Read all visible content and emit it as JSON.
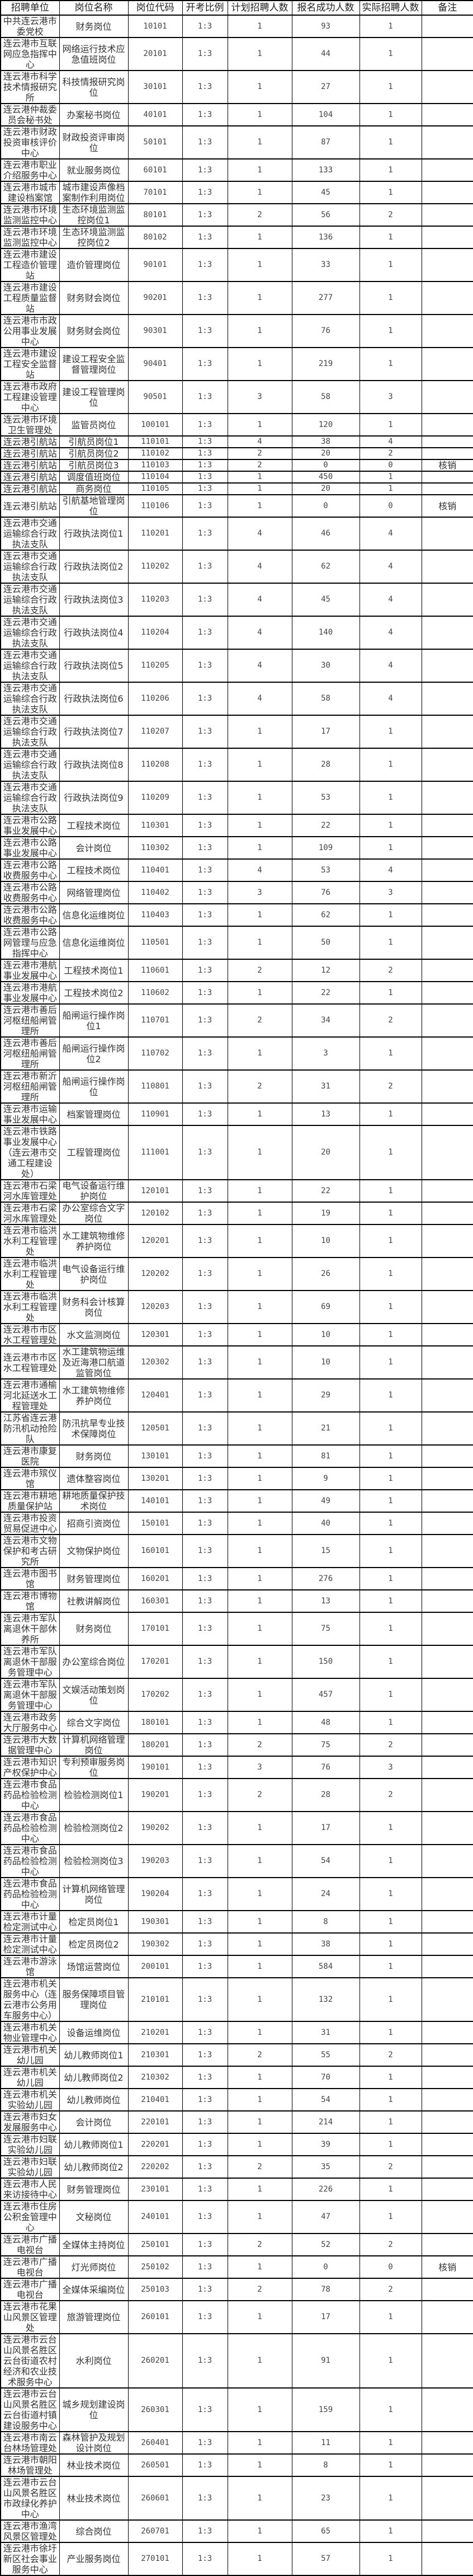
{
  "headers": [
    "招聘单位",
    "岗位名称",
    "岗位代码",
    "开考比例",
    "计划招聘人数",
    "报名成功人数",
    "实际招聘人数",
    "备注"
  ],
  "rows": [
    [
      "中共连云港市委党校",
      "财务岗位",
      "10101",
      "1:3",
      "1",
      "93",
      "1",
      ""
    ],
    [
      "连云港市互联网应急指挥中心",
      "网络运行技术应急值班岗位",
      "20101",
      "1:3",
      "1",
      "44",
      "1",
      ""
    ],
    [
      "连云港市科学技术情报研究所",
      "科技情报研究岗位",
      "30101",
      "1:3",
      "1",
      "27",
      "1",
      ""
    ],
    [
      "连云港仲裁委员会秘书处",
      "办案秘书岗位",
      "40101",
      "1:3",
      "1",
      "104",
      "1",
      ""
    ],
    [
      "连云港市财政投资审核评价中心",
      "财政投资评审岗位",
      "50101",
      "1:3",
      "1",
      "87",
      "1",
      ""
    ],
    [
      "连云港市职业介绍服务中心",
      "就业服务岗位",
      "60101",
      "1:3",
      "1",
      "133",
      "1",
      ""
    ],
    [
      "连云港市城市建设档案馆",
      "城市建设声像档案制作利用岗位",
      "70101",
      "1:3",
      "1",
      "45",
      "1",
      ""
    ],
    [
      "连云港市环境监测监控中心",
      "生态环境监测监控岗位1",
      "80101",
      "1:3",
      "2",
      "56",
      "2",
      ""
    ],
    [
      "连云港市环境监测监控中心",
      "生态环境监测监控岗位2",
      "80102",
      "1:3",
      "1",
      "136",
      "1",
      ""
    ],
    [
      "连云港市建设工程造价管理站",
      "造价管理岗位",
      "90101",
      "1:3",
      "1",
      "33",
      "1",
      ""
    ],
    [
      "连云港市建设工程质量监督站",
      "财务财会岗位",
      "90201",
      "1:3",
      "1",
      "277",
      "1",
      ""
    ],
    [
      "连云港市市政公用事业发展中心",
      "财务财会岗位",
      "90301",
      "1:3",
      "1",
      "76",
      "1",
      ""
    ],
    [
      "连云港市建设工程安全监督站",
      "建设工程安全监督管理岗位",
      "90401",
      "1:3",
      "1",
      "219",
      "1",
      ""
    ],
    [
      "连云港市政府工程建设管理中心",
      "建设工程管理岗位",
      "90501",
      "1:3",
      "3",
      "58",
      "3",
      ""
    ],
    [
      "连云港市环境卫生管理处",
      "监管员岗位",
      "100101",
      "1:3",
      "1",
      "120",
      "1",
      ""
    ],
    [
      "连云港引航站",
      "引航员岗位1",
      "110101",
      "1:3",
      "4",
      "38",
      "4",
      ""
    ],
    [
      "连云港引航站",
      "引航员岗位2",
      "110102",
      "1:3",
      "2",
      "20",
      "2",
      ""
    ],
    [
      "连云港引航站",
      "引航员岗位3",
      "110103",
      "1:3",
      "2",
      "0",
      "0",
      "核销"
    ],
    [
      "连云港引航站",
      "调度值班岗位",
      "110104",
      "1:3",
      "1",
      "450",
      "1",
      ""
    ],
    [
      "连云港引航站",
      "商务岗位",
      "110105",
      "1:3",
      "1",
      "20",
      "1",
      ""
    ],
    [
      "连云港引航站",
      "引航基地管理岗位",
      "110106",
      "1:3",
      "1",
      "0",
      "0",
      "核销"
    ],
    [
      "连云港市交通运输综合行政执法支队",
      "行政执法岗位1",
      "110201",
      "1:3",
      "4",
      "46",
      "4",
      ""
    ],
    [
      "连云港市交通运输综合行政执法支队",
      "行政执法岗位2",
      "110202",
      "1:3",
      "4",
      "62",
      "4",
      ""
    ],
    [
      "连云港市交通运输综合行政执法支队",
      "行政执法岗位3",
      "110203",
      "1:3",
      "4",
      "45",
      "4",
      ""
    ],
    [
      "连云港市交通运输综合行政执法支队",
      "行政执法岗位4",
      "110204",
      "1:3",
      "4",
      "140",
      "4",
      ""
    ],
    [
      "连云港市交通运输综合行政执法支队",
      "行政执法岗位5",
      "110205",
      "1:3",
      "4",
      "30",
      "4",
      ""
    ],
    [
      "连云港市交通运输综合行政执法支队",
      "行政执法岗位6",
      "110206",
      "1:3",
      "4",
      "58",
      "4",
      ""
    ],
    [
      "连云港市交通运输综合行政执法支队",
      "行政执法岗位7",
      "110207",
      "1:3",
      "1",
      "17",
      "1",
      ""
    ],
    [
      "连云港市交通运输综合行政执法支队",
      "行政执法岗位8",
      "110208",
      "1:3",
      "1",
      "28",
      "1",
      ""
    ],
    [
      "连云港市交通运输综合行政执法支队",
      "行政执法岗位9",
      "110209",
      "1:3",
      "1",
      "53",
      "1",
      ""
    ],
    [
      "连云港市公路事业发展中心",
      "工程技术岗位",
      "110301",
      "1:3",
      "1",
      "22",
      "1",
      ""
    ],
    [
      "连云港市公路事业发展中心",
      "会计岗位",
      "110302",
      "1:3",
      "1",
      "109",
      "1",
      ""
    ],
    [
      "连云港市公路收费服务中心",
      "工程技术岗位",
      "110401",
      "1:3",
      "4",
      "53",
      "4",
      ""
    ],
    [
      "连云港市公路收费服务中心",
      "网络管理岗位",
      "110402",
      "1:3",
      "3",
      "76",
      "3",
      ""
    ],
    [
      "连云港市公路收费服务中心",
      "信息化运维岗位",
      "110403",
      "1:3",
      "1",
      "62",
      "1",
      ""
    ],
    [
      "连云港市公路网管理与应急指挥中心",
      "信息化运维岗位",
      "110501",
      "1:3",
      "1",
      "50",
      "1",
      ""
    ],
    [
      "连云港市港航事业发展中心",
      "工程技术岗位1",
      "110601",
      "1:3",
      "2",
      "12",
      "2",
      ""
    ],
    [
      "连云港市港航事业发展中心",
      "工程技术岗位2",
      "110602",
      "1:3",
      "1",
      "22",
      "1",
      ""
    ],
    [
      "连云港市善后河枢纽船闸管理所",
      "船闸运行操作岗位1",
      "110701",
      "1:3",
      "2",
      "34",
      "2",
      ""
    ],
    [
      "连云港市善后河枢纽船闸管理所",
      "船闸运行操作岗位2",
      "110702",
      "1:3",
      "1",
      "3",
      "1",
      ""
    ],
    [
      "连云港市新沂河枢纽船闸管理所",
      "船闸运行操作岗位",
      "110801",
      "1:3",
      "2",
      "31",
      "2",
      ""
    ],
    [
      "连云港市运输事业发展中心",
      "档案管理岗位",
      "110901",
      "1:3",
      "1",
      "13",
      "1",
      ""
    ],
    [
      "连云港市铁路事业发展中心（连云港市交通工程建设处）",
      "工程管理岗位",
      "111001",
      "1:3",
      "1",
      "20",
      "1",
      ""
    ],
    [
      "连云港市石梁河水库管理处",
      "电气设备运行维护岗位",
      "120101",
      "1:3",
      "1",
      "22",
      "1",
      ""
    ],
    [
      "连云港市石梁河水库管理处",
      "办公室综合文字岗位",
      "120102",
      "1:3",
      "1",
      "19",
      "1",
      ""
    ],
    [
      "连云港市临洪水利工程管理处",
      "水工建筑物维修养护岗位",
      "120201",
      "1:3",
      "1",
      "10",
      "1",
      ""
    ],
    [
      "连云港市临洪水利工程管理处",
      "电气设备运行维护岗位",
      "120202",
      "1:3",
      "1",
      "26",
      "1",
      ""
    ],
    [
      "连云港市临洪水利工程管理处",
      "财务科会计核算岗位",
      "120203",
      "1:3",
      "1",
      "69",
      "1",
      ""
    ],
    [
      "连云港市市区水工程管理处",
      "水文监测岗位",
      "120301",
      "1:3",
      "1",
      "10",
      "1",
      ""
    ],
    [
      "连云港市市区水工程管理处",
      "水工建筑物运维及近海港口航道监管岗位",
      "120302",
      "1:3",
      "1",
      "10",
      "1",
      ""
    ],
    [
      "连云港市通榆河北延送水工程管理处",
      "水工建筑物维修养护岗位",
      "120401",
      "1:3",
      "1",
      "29",
      "1",
      ""
    ],
    [
      "江苏省连云港防汛机动抢险队",
      "防汛抗旱专业技术保障岗位",
      "120501",
      "1:3",
      "1",
      "21",
      "1",
      ""
    ],
    [
      "连云港市康复医院",
      "财务岗位",
      "130101",
      "1:3",
      "1",
      "81",
      "1",
      ""
    ],
    [
      "连云港市殡仪馆",
      "遗体整容岗位",
      "130201",
      "1:3",
      "1",
      "9",
      "1",
      ""
    ],
    [
      "连云港市耕地质量保护站",
      "耕地质量保护技术岗位",
      "140101",
      "1:3",
      "1",
      "49",
      "1",
      ""
    ],
    [
      "连云港市投资贸易促进中心",
      "招商引资岗位",
      "150101",
      "1:3",
      "1",
      "40",
      "1",
      ""
    ],
    [
      "连云港市文物保护和考古研究所",
      "文物保护岗位",
      "160101",
      "1:3",
      "1",
      "15",
      "1",
      ""
    ],
    [
      "连云港市图书馆",
      "财务管理岗位",
      "160201",
      "1:3",
      "1",
      "276",
      "1",
      ""
    ],
    [
      "连云港市博物馆",
      "社教讲解岗位",
      "160301",
      "1:3",
      "1",
      "13",
      "1",
      ""
    ],
    [
      "连云港市军队离退休干部休养所",
      "财务岗位",
      "170101",
      "1:3",
      "1",
      "75",
      "1",
      ""
    ],
    [
      "连云港市军队离退休干部服务管理中心",
      "办公室综合岗位",
      "170201",
      "1:3",
      "1",
      "150",
      "1",
      ""
    ],
    [
      "连云港市军队离退休干部服务管理中心",
      "文娱活动策划岗位",
      "170202",
      "1:3",
      "1",
      "457",
      "1",
      ""
    ],
    [
      "连云港市政务大厅服务中心",
      "综合文字岗位",
      "180101",
      "1:3",
      "1",
      "48",
      "1",
      ""
    ],
    [
      "连云港市大数据管理中心",
      "计算机网络管理岗位",
      "180201",
      "1:3",
      "2",
      "75",
      "2",
      ""
    ],
    [
      "连云港市知识产权保护中心",
      "专利预审服务岗位",
      "190101",
      "1:3",
      "3",
      "76",
      "3",
      ""
    ],
    [
      "连云港市食品药品检验检测中心",
      "检验检测岗位1",
      "190201",
      "1:3",
      "2",
      "28",
      "2",
      ""
    ],
    [
      "连云港市食品药品检验检测中心",
      "检验检测岗位2",
      "190202",
      "1:3",
      "1",
      "17",
      "1",
      ""
    ],
    [
      "连云港市食品药品检验检测中心",
      "检验检测岗位3",
      "190203",
      "1:3",
      "1",
      "54",
      "1",
      ""
    ],
    [
      "连云港市食品药品检验检测中心",
      "计算机网络管理岗位",
      "190204",
      "1:3",
      "1",
      "24",
      "1",
      ""
    ],
    [
      "连云港市计量检定测试中心",
      "检定员岗位1",
      "190301",
      "1:3",
      "1",
      "8",
      "1",
      ""
    ],
    [
      "连云港市计量检定测试中心",
      "检定员岗位2",
      "190302",
      "1:3",
      "1",
      "38",
      "1",
      ""
    ],
    [
      "连云港市游泳馆",
      "场馆运营岗位",
      "200101",
      "1:3",
      "1",
      "584",
      "1",
      ""
    ],
    [
      "连云港市机关服务中心（连云港市公务用车服务中心）",
      "服务保障项目管理岗位",
      "210101",
      "1:3",
      "1",
      "132",
      "1",
      ""
    ],
    [
      "连云港市机关物业管理中心",
      "设备运维岗位",
      "210201",
      "1:3",
      "1",
      "31",
      "1",
      ""
    ],
    [
      "连云港市机关幼儿园",
      "幼儿教师岗位1",
      "210301",
      "1:3",
      "2",
      "55",
      "2",
      ""
    ],
    [
      "连云港市机关幼儿园",
      "幼儿教师岗位2",
      "210302",
      "1:3",
      "1",
      "70",
      "1",
      ""
    ],
    [
      "连云港市机关实验幼儿园",
      "幼儿教师岗位",
      "210401",
      "1:3",
      "1",
      "54",
      "1",
      ""
    ],
    [
      "连云港市妇女发展服务中心",
      "会计岗位",
      "220101",
      "1:3",
      "1",
      "214",
      "1",
      ""
    ],
    [
      "连云港市妇联实验幼儿园",
      "幼儿教师岗位1",
      "220201",
      "1:3",
      "1",
      "39",
      "1",
      ""
    ],
    [
      "连云港市妇联实验幼儿园",
      "幼儿教师岗位2",
      "220202",
      "1:3",
      "2",
      "35",
      "2",
      ""
    ],
    [
      "连云港市人民来访接待中心",
      "财务管理岗位",
      "230101",
      "1:3",
      "1",
      "226",
      "1",
      ""
    ],
    [
      "连云港市住房公积金管理中心",
      "文秘岗位",
      "240101",
      "1:3",
      "1",
      "47",
      "1",
      ""
    ],
    [
      "连云港市广播电视台",
      "全媒体主持岗位",
      "250101",
      "1:3",
      "2",
      "52",
      "2",
      ""
    ],
    [
      "连云港市广播电视台",
      "灯光师岗位",
      "250102",
      "1:3",
      "1",
      "0",
      "0",
      "核销"
    ],
    [
      "连云港市广播电视台",
      "全媒体采编岗位",
      "250103",
      "1:3",
      "2",
      "78",
      "2",
      ""
    ],
    [
      "连云港市花果山风景区管理处",
      "旅游管理岗位",
      "260101",
      "1:3",
      "1",
      "17",
      "1",
      ""
    ],
    [
      "连云港市云台山风景名胜区云台街道农村经济和农业技术服务中心",
      "水利岗位",
      "260201",
      "1:3",
      "1",
      "91",
      "1",
      ""
    ],
    [
      "连云港市云台山风景名胜区云台街道村镇建设服务中心",
      "城乡规划建设岗位",
      "260301",
      "1:3",
      "1",
      "159",
      "1",
      ""
    ],
    [
      "连云港市南云台林场管理处",
      "森林管护及规划设计岗位",
      "260401",
      "1:3",
      "1",
      "11",
      "1",
      ""
    ],
    [
      "连云港市朝阳林场管理处",
      "林业技术岗位",
      "260501",
      "1:3",
      "1",
      "8",
      "1",
      ""
    ],
    [
      "连云港市云台山风景名胜区市政绿化养护中心",
      "林业技术岗位",
      "260601",
      "1:3",
      "1",
      "23",
      "1",
      ""
    ],
    [
      "连云港市渔湾风景区管理处",
      "综合岗位",
      "260701",
      "1:3",
      "1",
      "65",
      "1",
      ""
    ],
    [
      "连云港市徐圩新区社会事业服务中心",
      "产业服务岗位",
      "270101",
      "1:3",
      "1",
      "57",
      "1",
      ""
    ]
  ]
}
